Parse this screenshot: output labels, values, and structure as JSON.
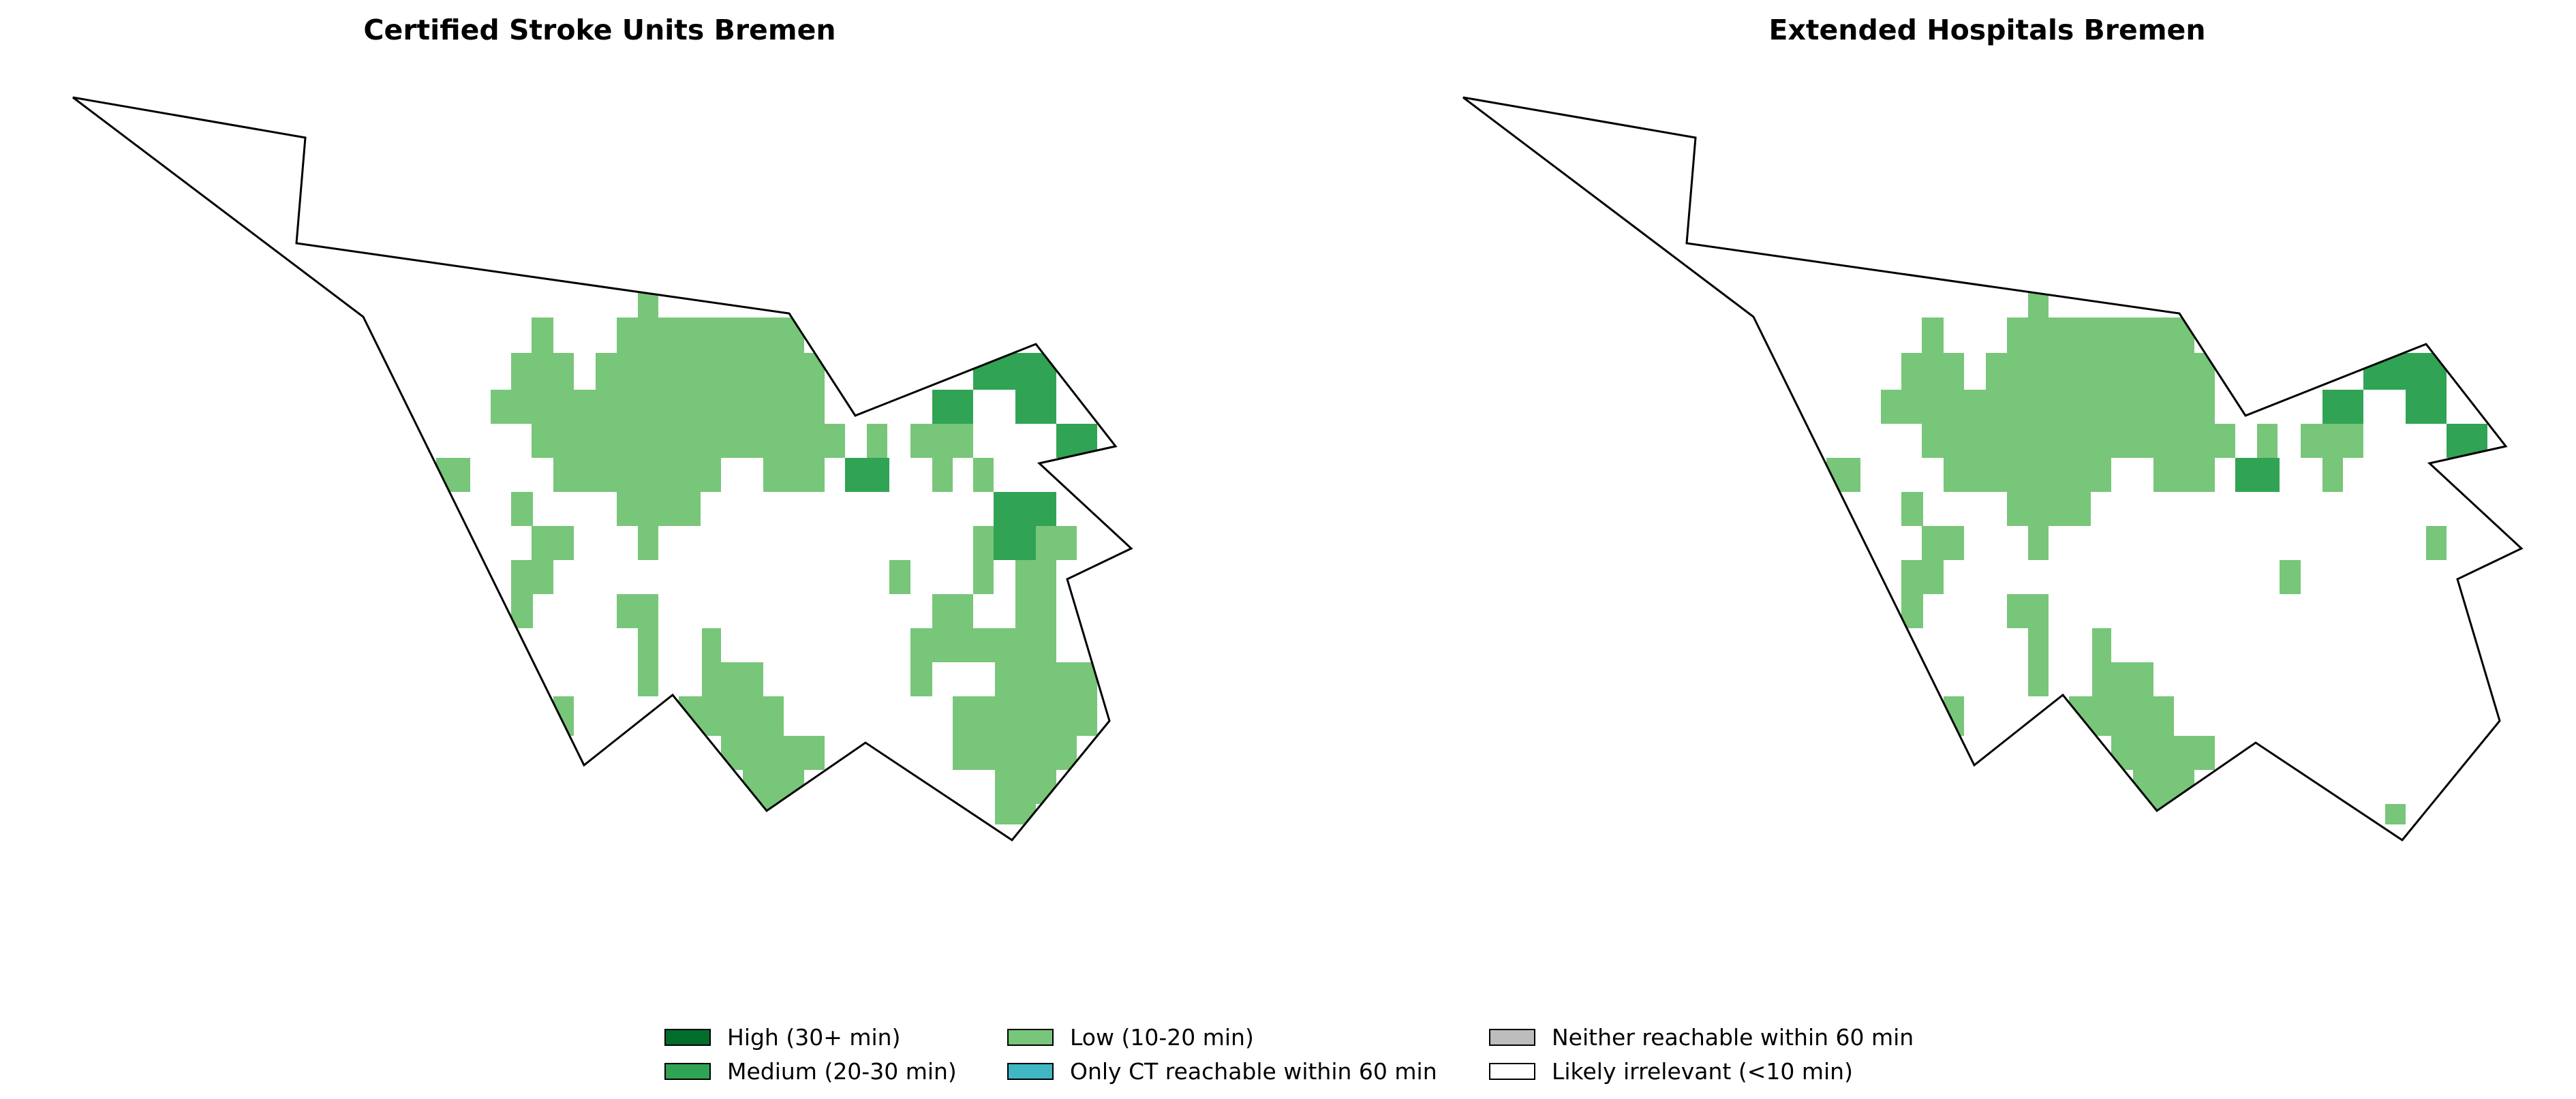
{
  "panels": [
    {
      "title": "Certified Stroke Units Bremen"
    },
    {
      "title": "Extended Hospitals Bremen"
    }
  ],
  "colors": {
    "high": "#006d2c",
    "medium": "#31a354",
    "low": "#78c679",
    "ct_only": "#41b6c4",
    "neither": "#bdbdbd",
    "irrelevant": "#ffffff",
    "outline": "#000000"
  },
  "legend": [
    {
      "label": "High (30+ min)",
      "color": "#006d2c"
    },
    {
      "label": "Medium (20-30 min)",
      "color": "#31a354"
    },
    {
      "label": "Low (10-20 min)",
      "color": "#78c679"
    },
    {
      "label": "Only CT reachable within 60 min",
      "color": "#41b6c4"
    },
    {
      "label": "Neither reachable within 60 min",
      "color": "#bdbdbd"
    },
    {
      "label": "Likely irrelevant (<10 min)",
      "color": "#ffffff"
    }
  ]
}
